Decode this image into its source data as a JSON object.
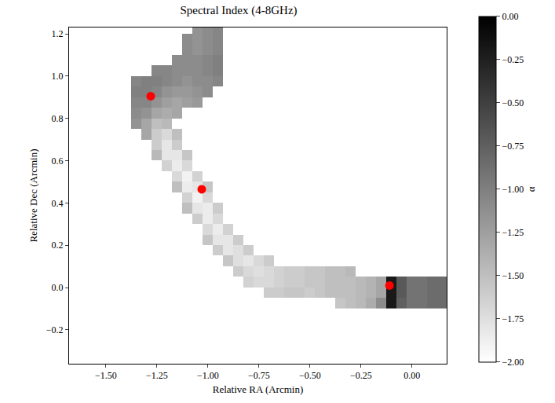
{
  "chart_data": {
    "type": "heatmap",
    "title": "Spectral Index (4-8GHz)",
    "x_label": "Relative RA (Arcmin)",
    "y_label": "Relative Dec (Arcmin)",
    "xlim": [
      -1.68,
      0.17
    ],
    "ylim": [
      -0.36,
      1.23
    ],
    "xticks": [
      {
        "value": -1.5,
        "label": "−1.50"
      },
      {
        "value": -1.25,
        "label": "−1.25"
      },
      {
        "value": -1.0,
        "label": "−1.00"
      },
      {
        "value": -0.75,
        "label": "−0.75"
      },
      {
        "value": -0.5,
        "label": "−0.50"
      },
      {
        "value": -0.25,
        "label": "−0.25"
      },
      {
        "value": 0,
        "label": "0.00"
      }
    ],
    "yticks": [
      {
        "value": -0.2,
        "label": "−0.2"
      },
      {
        "value": 0,
        "label": "0.0"
      },
      0.2,
      0.4,
      0.6,
      0.8,
      {
        "value": 1.0,
        "label": "1.0"
      },
      {
        "value": 1.2,
        "label": "1.2"
      }
    ],
    "colorbar": {
      "title": "α",
      "range": [
        -2,
        0
      ],
      "ticks": [
        {
          "value": 0,
          "label": "0.00"
        },
        {
          "value": -0.25,
          "label": "−0.25"
        },
        {
          "value": -0.5,
          "label": "−0.50"
        },
        {
          "value": -0.75,
          "label": "−0.75"
        },
        {
          "value": -1.0,
          "label": "−1.00"
        },
        {
          "value": -1.25,
          "label": "−1.25"
        },
        {
          "value": -1.5,
          "label": "−1.50"
        },
        {
          "value": -1.75,
          "label": "−1.75"
        },
        {
          "value": -2.0,
          "label": "−2.00"
        }
      ]
    },
    "x": [
      -1.65,
      -1.6,
      -1.55,
      -1.5,
      -1.45,
      -1.4,
      -1.35,
      -1.3,
      -1.25,
      -1.2,
      -1.15,
      -1.1,
      -1.05,
      -1.0,
      -0.95,
      -0.9,
      -0.85,
      -0.8,
      -0.75,
      -0.7,
      -0.65,
      -0.6,
      -0.55,
      -0.5,
      -0.45,
      -0.4,
      -0.35,
      -0.3,
      -0.25,
      -0.2,
      -0.15,
      -0.1,
      -0.05,
      0,
      0.05,
      0.1,
      0.15
    ],
    "y": [
      -0.075,
      -0.025,
      0.025,
      0.075,
      0.125,
      0.175,
      0.225,
      0.275,
      0.325,
      0.375,
      0.425,
      0.475,
      0.525,
      0.575,
      0.625,
      0.675,
      0.725,
      0.775,
      0.825,
      0.875,
      0.925,
      0.975,
      1.025,
      1.075,
      1.125,
      1.175,
      1.225
    ],
    "z": [
      [
        null,
        null,
        null,
        null,
        null,
        null,
        null,
        null,
        null,
        null,
        null,
        null,
        null,
        null,
        null,
        null,
        null,
        null,
        null,
        null,
        null,
        null,
        null,
        null,
        null,
        null,
        -1.55,
        -1.5,
        -1.45,
        -1.35,
        -1.1,
        -0.2,
        -0.75,
        -0.9,
        -0.9,
        -0.85,
        -0.85
      ],
      [
        null,
        null,
        null,
        null,
        null,
        null,
        null,
        null,
        null,
        null,
        null,
        null,
        null,
        null,
        null,
        null,
        null,
        null,
        null,
        -1.6,
        -1.6,
        -1.55,
        -1.55,
        -1.6,
        -1.55,
        -1.5,
        -1.5,
        -1.5,
        -1.45,
        -1.4,
        -1.3,
        -0.2,
        -0.7,
        -0.9,
        -0.9,
        -0.85,
        -0.85
      ],
      [
        null,
        null,
        null,
        null,
        null,
        null,
        null,
        null,
        null,
        null,
        null,
        null,
        null,
        null,
        null,
        null,
        null,
        -1.65,
        -1.7,
        -1.7,
        -1.65,
        -1.6,
        -1.6,
        -1.55,
        -1.55,
        -1.5,
        -1.5,
        -1.5,
        -1.45,
        -1.4,
        -1.3,
        -0.2,
        -0.7,
        -0.9,
        -0.9,
        -0.85,
        -0.85
      ],
      [
        null,
        null,
        null,
        null,
        null,
        null,
        null,
        null,
        null,
        null,
        null,
        null,
        null,
        null,
        null,
        null,
        -1.6,
        -1.7,
        -1.75,
        -1.7,
        -1.65,
        -1.6,
        -1.6,
        -1.55,
        -1.55,
        -1.5,
        -1.5,
        -1.45,
        null,
        null,
        null,
        null,
        null,
        null,
        null,
        null,
        null
      ],
      [
        null,
        null,
        null,
        null,
        null,
        null,
        null,
        null,
        null,
        null,
        null,
        null,
        null,
        null,
        null,
        -1.55,
        -1.75,
        -1.8,
        -1.7,
        -1.6,
        null,
        null,
        null,
        null,
        null,
        null,
        null,
        null,
        null,
        null,
        null,
        null,
        null,
        null,
        null,
        null,
        null
      ],
      [
        null,
        null,
        null,
        null,
        null,
        null,
        null,
        null,
        null,
        null,
        null,
        null,
        null,
        null,
        -1.6,
        -1.8,
        -1.75,
        -1.6,
        null,
        null,
        null,
        null,
        null,
        null,
        null,
        null,
        null,
        null,
        null,
        null,
        null,
        null,
        null,
        null,
        null,
        null,
        null
      ],
      [
        null,
        null,
        null,
        null,
        null,
        null,
        null,
        null,
        null,
        null,
        null,
        null,
        null,
        -1.55,
        -1.8,
        -1.8,
        -1.6,
        null,
        null,
        null,
        null,
        null,
        null,
        null,
        null,
        null,
        null,
        null,
        null,
        null,
        null,
        null,
        null,
        null,
        null,
        null,
        null
      ],
      [
        null,
        null,
        null,
        null,
        null,
        null,
        null,
        null,
        null,
        null,
        null,
        null,
        null,
        -1.7,
        -1.85,
        -1.65,
        null,
        null,
        null,
        null,
        null,
        null,
        null,
        null,
        null,
        null,
        null,
        null,
        null,
        null,
        null,
        null,
        null,
        null,
        null,
        null,
        null
      ],
      [
        null,
        null,
        null,
        null,
        null,
        null,
        null,
        null,
        null,
        null,
        null,
        null,
        -1.6,
        -1.85,
        -1.7,
        null,
        null,
        null,
        null,
        null,
        null,
        null,
        null,
        null,
        null,
        null,
        null,
        null,
        null,
        null,
        null,
        null,
        null,
        null,
        null,
        null,
        null
      ],
      [
        null,
        null,
        null,
        null,
        null,
        null,
        null,
        null,
        null,
        null,
        null,
        -1.5,
        -1.8,
        -1.85,
        -1.6,
        null,
        null,
        null,
        null,
        null,
        null,
        null,
        null,
        null,
        null,
        null,
        null,
        null,
        null,
        null,
        null,
        null,
        null,
        null,
        null,
        null,
        null
      ],
      [
        null,
        null,
        null,
        null,
        null,
        null,
        null,
        null,
        null,
        null,
        null,
        -1.65,
        -1.9,
        -1.7,
        null,
        null,
        null,
        null,
        null,
        null,
        null,
        null,
        null,
        null,
        null,
        null,
        null,
        null,
        null,
        null,
        null,
        null,
        null,
        null,
        null,
        null,
        null
      ],
      [
        null,
        null,
        null,
        null,
        null,
        null,
        null,
        null,
        null,
        null,
        -1.5,
        -1.85,
        -1.8,
        -1.55,
        null,
        null,
        null,
        null,
        null,
        null,
        null,
        null,
        null,
        null,
        null,
        null,
        null,
        null,
        null,
        null,
        null,
        null,
        null,
        null,
        null,
        null,
        null
      ],
      [
        null,
        null,
        null,
        null,
        null,
        null,
        null,
        null,
        null,
        null,
        -1.7,
        -1.9,
        -1.65,
        null,
        null,
        null,
        null,
        null,
        null,
        null,
        null,
        null,
        null,
        null,
        null,
        null,
        null,
        null,
        null,
        null,
        null,
        null,
        null,
        null,
        null,
        null,
        null
      ],
      [
        null,
        null,
        null,
        null,
        null,
        null,
        null,
        null,
        null,
        -1.65,
        -1.85,
        -1.7,
        null,
        null,
        null,
        null,
        null,
        null,
        null,
        null,
        null,
        null,
        null,
        null,
        null,
        null,
        null,
        null,
        null,
        null,
        null,
        null,
        null,
        null,
        null,
        null,
        null
      ],
      [
        null,
        null,
        null,
        null,
        null,
        null,
        null,
        null,
        -1.45,
        -1.8,
        -1.8,
        -1.55,
        null,
        null,
        null,
        null,
        null,
        null,
        null,
        null,
        null,
        null,
        null,
        null,
        null,
        null,
        null,
        null,
        null,
        null,
        null,
        null,
        null,
        null,
        null,
        null,
        null
      ],
      [
        null,
        null,
        null,
        null,
        null,
        null,
        null,
        null,
        -1.6,
        -1.8,
        -1.6,
        null,
        null,
        null,
        null,
        null,
        null,
        null,
        null,
        null,
        null,
        null,
        null,
        null,
        null,
        null,
        null,
        null,
        null,
        null,
        null,
        null,
        null,
        null,
        null,
        null,
        null
      ],
      [
        null,
        null,
        null,
        null,
        null,
        null,
        null,
        -1.3,
        -1.6,
        -1.7,
        -1.5,
        null,
        null,
        null,
        null,
        null,
        null,
        null,
        null,
        null,
        null,
        null,
        null,
        null,
        null,
        null,
        null,
        null,
        null,
        null,
        null,
        null,
        null,
        null,
        null,
        null,
        null
      ],
      [
        null,
        null,
        null,
        null,
        null,
        null,
        -1.15,
        -1.3,
        -1.5,
        -1.45,
        null,
        null,
        null,
        null,
        null,
        null,
        null,
        null,
        null,
        null,
        null,
        null,
        null,
        null,
        null,
        null,
        null,
        null,
        null,
        null,
        null,
        null,
        null,
        null,
        null,
        null,
        null
      ],
      [
        null,
        null,
        null,
        null,
        null,
        null,
        -1.1,
        -1.15,
        -1.3,
        -1.35,
        -1.3,
        null,
        null,
        null,
        null,
        null,
        null,
        null,
        null,
        null,
        null,
        null,
        null,
        null,
        null,
        null,
        null,
        null,
        null,
        null,
        null,
        null,
        null,
        null,
        null,
        null,
        null
      ],
      [
        null,
        null,
        null,
        null,
        null,
        null,
        -1.05,
        -1.05,
        -1.15,
        -1.25,
        -1.3,
        -1.25,
        -1.2,
        null,
        null,
        null,
        null,
        null,
        null,
        null,
        null,
        null,
        null,
        null,
        null,
        null,
        null,
        null,
        null,
        null,
        null,
        null,
        null,
        null,
        null,
        null,
        null
      ],
      [
        null,
        null,
        null,
        null,
        null,
        null,
        -1.0,
        -1.0,
        -1.05,
        -1.15,
        -1.2,
        -1.2,
        -1.15,
        -1.1,
        null,
        null,
        null,
        null,
        null,
        null,
        null,
        null,
        null,
        null,
        null,
        null,
        null,
        null,
        null,
        null,
        null,
        null,
        null,
        null,
        null,
        null,
        null
      ],
      [
        null,
        null,
        null,
        null,
        null,
        null,
        -1.05,
        -1.0,
        -1.0,
        -1.05,
        -1.1,
        -1.15,
        -1.1,
        -1.1,
        -1.05,
        null,
        null,
        null,
        null,
        null,
        null,
        null,
        null,
        null,
        null,
        null,
        null,
        null,
        null,
        null,
        null,
        null,
        null,
        null,
        null,
        null,
        null
      ],
      [
        null,
        null,
        null,
        null,
        null,
        null,
        null,
        null,
        -1.05,
        -1.05,
        -1.1,
        -1.1,
        -1.1,
        -1.05,
        -1.0,
        null,
        null,
        null,
        null,
        null,
        null,
        null,
        null,
        null,
        null,
        null,
        null,
        null,
        null,
        null,
        null,
        null,
        null,
        null,
        null,
        null,
        null
      ],
      [
        null,
        null,
        null,
        null,
        null,
        null,
        null,
        null,
        null,
        null,
        -1.1,
        -1.1,
        -1.1,
        -1.05,
        -1.0,
        null,
        null,
        null,
        null,
        null,
        null,
        null,
        null,
        null,
        null,
        null,
        null,
        null,
        null,
        null,
        null,
        null,
        null,
        null,
        null,
        null,
        null
      ],
      [
        null,
        null,
        null,
        null,
        null,
        null,
        null,
        null,
        null,
        null,
        null,
        -1.1,
        -1.15,
        -1.1,
        -1.05,
        null,
        null,
        null,
        null,
        null,
        null,
        null,
        null,
        null,
        null,
        null,
        null,
        null,
        null,
        null,
        null,
        null,
        null,
        null,
        null,
        null,
        null
      ],
      [
        null,
        null,
        null,
        null,
        null,
        null,
        null,
        null,
        null,
        null,
        null,
        -1.1,
        -1.15,
        -1.1,
        -1.05,
        null,
        null,
        null,
        null,
        null,
        null,
        null,
        null,
        null,
        null,
        null,
        null,
        null,
        null,
        null,
        null,
        null,
        null,
        null,
        null,
        null,
        null
      ],
      [
        null,
        null,
        null,
        null,
        null,
        null,
        null,
        null,
        null,
        null,
        null,
        null,
        -1.15,
        -1.1,
        -1.05,
        null,
        null,
        null,
        null,
        null,
        null,
        null,
        null,
        null,
        null,
        null,
        null,
        null,
        null,
        null,
        null,
        null,
        null,
        null,
        null,
        null,
        null
      ]
    ],
    "points": {
      "x": [
        -1.28,
        -1.03,
        -0.11
      ],
      "y": [
        0.905,
        0.465,
        0.01
      ],
      "color": "#ff0000",
      "marker": "circle"
    }
  }
}
